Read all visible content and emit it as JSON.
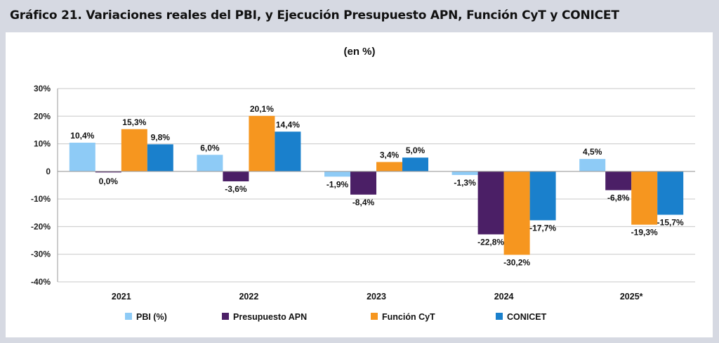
{
  "header": {
    "title": "Gráfico 21. Variaciones reales del PBI, y Ejecución Presupuesto APN, Función CyT y CONICET"
  },
  "chart_data": {
    "type": "bar",
    "subtitle": "(en %)",
    "categories": [
      "2021",
      "2022",
      "2023",
      "2024",
      "2025*"
    ],
    "ylim": [
      -40,
      30
    ],
    "yticks": [
      30,
      20,
      10,
      0,
      -10,
      -20,
      -30,
      -40
    ],
    "ytick_labels": [
      "30%",
      "20%",
      "10%",
      "0",
      "-10%",
      "-20%",
      "-30%",
      "-40%"
    ],
    "grid": true,
    "legend_position": "bottom",
    "series": [
      {
        "name": "PBI (%)",
        "color": "#8ecbf6",
        "values": [
          10.4,
          6.0,
          -1.9,
          -1.3,
          4.5
        ],
        "labels": [
          "10,4%",
          "6,0%",
          "-1,9%",
          "-1,3%",
          "4,5%"
        ]
      },
      {
        "name": "Presupuesto APN",
        "color": "#4b1f66",
        "values": [
          0.0,
          -3.6,
          -8.4,
          -22.8,
          -6.8
        ],
        "labels": [
          "0,0%",
          "-3,6%",
          "-8,4%",
          "-22,8%",
          "-6,8%"
        ]
      },
      {
        "name": "Función CyT",
        "color": "#f6961f",
        "values": [
          15.3,
          20.1,
          3.4,
          -30.2,
          -19.3
        ],
        "labels": [
          "15,3%",
          "20,1%",
          "3,4%",
          "-30,2%",
          "-19,3%"
        ]
      },
      {
        "name": "CONICET",
        "color": "#1a80cc",
        "values": [
          9.8,
          14.4,
          5.0,
          -17.7,
          -15.7
        ],
        "labels": [
          "9,8%",
          "14,4%",
          "5,0%",
          "-17,7%",
          "-15,7%"
        ]
      }
    ]
  }
}
